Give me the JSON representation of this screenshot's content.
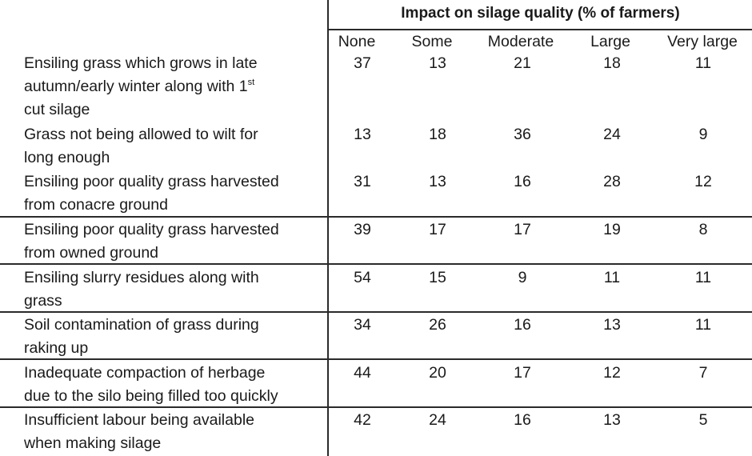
{
  "table": {
    "title": "Impact on silage quality (% of farmers)",
    "columns": [
      "None",
      "Some",
      "Moderate",
      "Large",
      "Very large"
    ],
    "rows": [
      {
        "lines": [
          "Ensiling grass which grows in late",
          "autumn/early winter along with 1",
          "cut silage"
        ],
        "sup": "st",
        "values": [
          "37",
          "13",
          "21",
          "18",
          "11"
        ]
      },
      {
        "lines": [
          "Grass not being allowed to wilt for",
          "long enough"
        ],
        "values": [
          "13",
          "18",
          "36",
          "24",
          "9"
        ]
      },
      {
        "lines": [
          "Ensiling poor quality grass harvested",
          "from conacre ground"
        ],
        "values": [
          "31",
          "13",
          "16",
          "28",
          "12"
        ]
      },
      {
        "lines": [
          "Ensiling poor quality grass harvested",
          "from owned ground"
        ],
        "values": [
          "39",
          "17",
          "17",
          "19",
          "8"
        ]
      },
      {
        "lines": [
          "Ensiling slurry residues along with",
          "grass"
        ],
        "values": [
          "54",
          "15",
          "9",
          "11",
          "11"
        ]
      },
      {
        "lines": [
          "Soil contamination of grass during",
          "raking up"
        ],
        "values": [
          "34",
          "26",
          "16",
          "13",
          "11"
        ]
      },
      {
        "lines": [
          "Inadequate compaction of herbage",
          "due to the silo being filled too quickly"
        ],
        "values": [
          "44",
          "20",
          "17",
          "12",
          "7"
        ]
      },
      {
        "lines": [
          "Insufficient labour being available",
          "when making silage"
        ],
        "values": [
          "42",
          "24",
          "16",
          "13",
          "5"
        ]
      }
    ]
  }
}
